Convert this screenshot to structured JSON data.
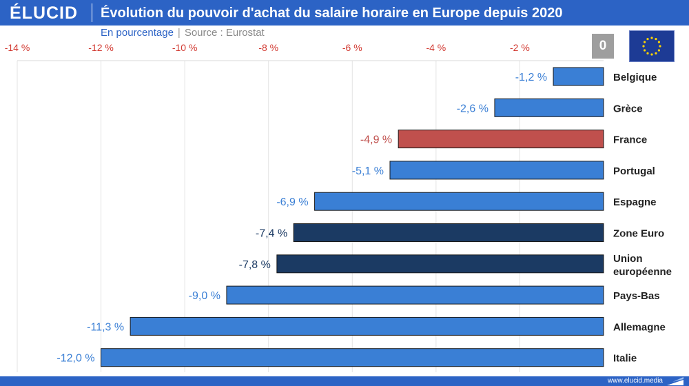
{
  "brand": "ÉLUCID",
  "title": "Évolution du pouvoir d'achat du salaire horaire en Europe depuis 2020",
  "subtitle_unit": "En pourcentage",
  "subtitle_sep": "|",
  "subtitle_source": "Source : Eurostat",
  "zero_label": "0",
  "footer_url": "www.elucid.media",
  "colors": {
    "brand": "#2c63c5",
    "bar_default": "#3a7fd5",
    "bar_france": "#c0504d",
    "bar_euro": "#1b3a63",
    "tick": "#d23a32",
    "label_default": "#3a7fd5",
    "label_france": "#c0504d",
    "label_euro": "#1b3a63"
  },
  "chart_data": {
    "type": "bar",
    "orientation": "horizontal",
    "title": "Évolution du pouvoir d'achat du salaire horaire en Europe depuis 2020",
    "xlabel": "En pourcentage",
    "ylabel": "",
    "xlim": [
      -14,
      0
    ],
    "x_ticks": [
      -14,
      -12,
      -10,
      -8,
      -6,
      -4,
      -2
    ],
    "x_tick_labels": [
      "-14 %",
      "-12 %",
      "-10 %",
      "-8 %",
      "-6 %",
      "-4 %",
      "-2 %"
    ],
    "grid": true,
    "categories": [
      {
        "lines": [
          "Belgique"
        ],
        "value": -1.2,
        "label": "-1,2 %",
        "style": "default"
      },
      {
        "lines": [
          "Grèce"
        ],
        "value": -2.6,
        "label": "-2,6 %",
        "style": "default"
      },
      {
        "lines": [
          "France"
        ],
        "value": -4.9,
        "label": "-4,9 %",
        "style": "france"
      },
      {
        "lines": [
          "Portugal"
        ],
        "value": -5.1,
        "label": "-5,1 %",
        "style": "default"
      },
      {
        "lines": [
          "Espagne"
        ],
        "value": -6.9,
        "label": "-6,9 %",
        "style": "default"
      },
      {
        "lines": [
          "Zone Euro"
        ],
        "value": -7.4,
        "label": "-7,4 %",
        "style": "euro"
      },
      {
        "lines": [
          "Union",
          "européenne"
        ],
        "value": -7.8,
        "label": "-7,8 %",
        "style": "euro"
      },
      {
        "lines": [
          "Pays-Bas"
        ],
        "value": -9.0,
        "label": "-9,0 %",
        "style": "default"
      },
      {
        "lines": [
          "Allemagne"
        ],
        "value": -11.3,
        "label": "-11,3 %",
        "style": "default"
      },
      {
        "lines": [
          "Italie"
        ],
        "value": -12.0,
        "label": "-12,0 %",
        "style": "default"
      }
    ]
  }
}
